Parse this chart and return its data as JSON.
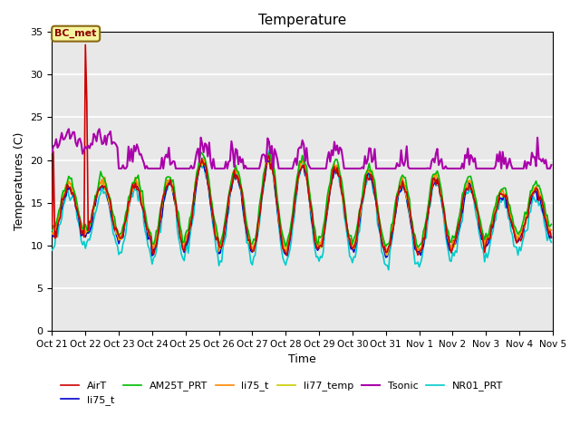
{
  "title": "Temperature",
  "xlabel": "Time",
  "ylabel": "Temperatures (C)",
  "ylim": [
    0,
    35
  ],
  "annotation_text": "BC_met",
  "annotation_bg": "#f5f5a0",
  "annotation_border": "#8B6914",
  "plot_bg": "#e8e8e8",
  "grid_color": "#ffffff",
  "series": {
    "AirT": {
      "color": "#cc0000",
      "lw": 1.2
    },
    "li75_t_b": {
      "color": "#0000cc",
      "lw": 1.2
    },
    "AM25T_PRT": {
      "color": "#00bb00",
      "lw": 1.2
    },
    "li75_t": {
      "color": "#ff8800",
      "lw": 1.2
    },
    "li77_temp": {
      "color": "#cccc00",
      "lw": 1.2
    },
    "Tsonic": {
      "color": "#aa00aa",
      "lw": 1.5
    },
    "NR01_PRT": {
      "color": "#00cccc",
      "lw": 1.2
    }
  },
  "n_points": 360,
  "tick_labels": [
    "Oct 21",
    "Oct 22",
    "Oct 23",
    "Oct 24",
    "Oct 25",
    "Oct 26",
    "Oct 27",
    "Oct 28",
    "Oct 29",
    "Oct 30",
    "Oct 31",
    "Nov 1",
    "Nov 2",
    "Nov 3",
    "Nov 4",
    "Nov 5"
  ],
  "tick_positions": [
    0,
    24,
    48,
    72,
    96,
    120,
    144,
    168,
    192,
    216,
    240,
    264,
    288,
    312,
    336,
    360
  ]
}
